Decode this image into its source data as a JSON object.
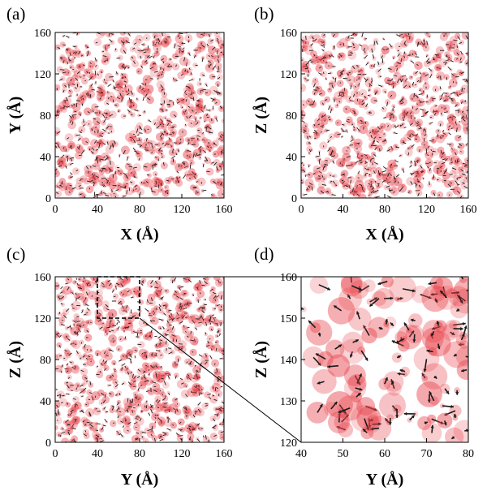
{
  "chart_data": [
    {
      "panel": "(a)",
      "type": "scatter",
      "xlabel": "X (Å)",
      "ylabel": "Y (Å)",
      "xlim": [
        0,
        160
      ],
      "ylim": [
        0,
        160
      ],
      "xticks": [
        "0",
        "40",
        "80",
        "120",
        "160"
      ],
      "yticks": [
        "0",
        "40",
        "80",
        "120",
        "160"
      ],
      "description_of_marks": "dense random field of translucent red discs with black displacement arrows"
    },
    {
      "panel": "(b)",
      "type": "scatter",
      "xlabel": "X (Å)",
      "ylabel": "Z (Å)",
      "xlim": [
        0,
        160
      ],
      "ylim": [
        0,
        160
      ],
      "xticks": [
        "0",
        "40",
        "80",
        "120",
        "160"
      ],
      "yticks": [
        "0",
        "40",
        "80",
        "120",
        "160"
      ]
    },
    {
      "panel": "(c)",
      "type": "scatter",
      "xlabel": "Y (Å)",
      "ylabel": "Z (Å)",
      "xlim": [
        0,
        160
      ],
      "ylim": [
        0,
        160
      ],
      "xticks": [
        "0",
        "40",
        "80",
        "120",
        "160"
      ],
      "yticks": [
        "0",
        "40",
        "80",
        "120",
        "160"
      ],
      "zoom_box": {
        "x": [
          40,
          80
        ],
        "y": [
          120,
          160
        ]
      }
    },
    {
      "panel": "(d)",
      "type": "scatter",
      "xlabel": "Y (Å)",
      "ylabel": "Z (Å)",
      "xlim": [
        40,
        80
      ],
      "ylim": [
        120,
        160
      ],
      "xticks": [
        "40",
        "50",
        "60",
        "70",
        "80"
      ],
      "yticks": [
        "120",
        "130",
        "140",
        "150",
        "160"
      ]
    }
  ],
  "colors": {
    "disc": "#e8474f",
    "arrow": "#1a1a1a",
    "frame": "#000000"
  }
}
